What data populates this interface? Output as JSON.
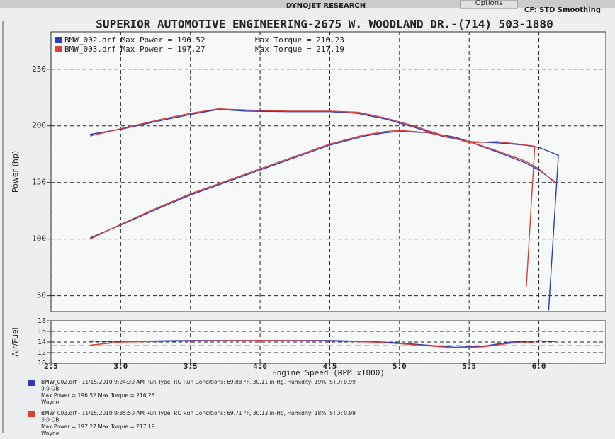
{
  "header": {
    "top_center": "DYNOJET RESEARCH",
    "tab": "Options",
    "top_right": "CF: STD Smoothing",
    "title": "SUPERIOR AUTOMOTIVE ENGINEERING-2675 W. WOODLAND DR.-(714) 503-1880"
  },
  "chart_data": [
    {
      "type": "line",
      "ylabel": "Power (hp)",
      "xlim": [
        2.5,
        6.48
      ],
      "ylim": [
        36,
        283
      ],
      "yticks": [
        50,
        100,
        150,
        200,
        250
      ],
      "grid": true,
      "series": [
        {
          "name": "BMW_002.drf Max Power = 196.52",
          "color": "#2c3bb8",
          "x": [
            2.78,
            3.0,
            3.25,
            3.5,
            3.75,
            4.0,
            4.25,
            4.5,
            4.75,
            4.9,
            5.0,
            5.2,
            5.4,
            5.5,
            5.7,
            5.9,
            6.0,
            6.14,
            6.07
          ],
          "values": [
            101,
            112.5,
            126,
            139,
            150,
            161,
            172,
            183,
            191,
            194,
            195,
            194,
            190,
            186,
            185,
            183,
            181,
            174,
            37
          ]
        },
        {
          "name": "Max Torque = 216.23",
          "color": "#2c3bb8",
          "x": [
            2.78,
            3.0,
            3.3,
            3.5,
            3.7,
            3.9,
            4.2,
            4.5,
            4.7,
            4.9,
            5.1,
            5.3,
            5.5,
            5.7,
            5.9,
            6.0,
            6.12
          ],
          "values": [
            192.5,
            197,
            205,
            210,
            214.5,
            213,
            212.5,
            212.5,
            211,
            206,
            199,
            191,
            186,
            177,
            167.5,
            161,
            150
          ]
        },
        {
          "name": "BMW_003.drf Max Power = 197.27",
          "color": "#d8403c",
          "x": [
            2.78,
            3.0,
            3.25,
            3.5,
            3.75,
            4.0,
            4.25,
            4.5,
            4.75,
            4.9,
            5.0,
            5.2,
            5.4,
            5.5,
            5.7,
            5.85,
            5.97,
            5.91
          ],
          "values": [
            100,
            113,
            127,
            140,
            151,
            162,
            173,
            184,
            192,
            195,
            196,
            194,
            189,
            185,
            186,
            184,
            182,
            58
          ]
        },
        {
          "name": "Max Torque = 217.19",
          "color": "#d8403c",
          "x": [
            2.78,
            3.0,
            3.3,
            3.5,
            3.7,
            3.9,
            4.2,
            4.5,
            4.7,
            4.9,
            5.1,
            5.3,
            5.5,
            5.7,
            5.9,
            6.0,
            6.12
          ],
          "values": [
            191,
            197.5,
            206,
            211,
            215,
            214,
            213,
            213,
            212,
            207,
            200,
            192,
            186,
            178,
            169,
            162,
            149
          ]
        }
      ]
    },
    {
      "type": "line",
      "ylabel": "Air/Fuel",
      "xlabel": "Engine Speed (RPM x1000)",
      "xlim": [
        2.5,
        6.48
      ],
      "ylim": [
        10,
        18
      ],
      "yticks": [
        10,
        12,
        14,
        16,
        18
      ],
      "xticks": [
        {
          "value": 2.5,
          "label": "2.5"
        },
        {
          "value": 3,
          "label": "3.0"
        },
        {
          "value": 3.5,
          "label": "3.5"
        },
        {
          "value": 4,
          "label": "4.0"
        },
        {
          "value": 4.5,
          "label": "4.5"
        },
        {
          "value": 5,
          "label": "5.0"
        },
        {
          "value": 5.5,
          "label": "5.5"
        },
        {
          "value": 6,
          "label": "6.0"
        }
      ],
      "grid": true,
      "series": [
        {
          "color": "#2c3bb8",
          "dash": false,
          "x": [
            2.78,
            3.0,
            3.5,
            4.0,
            4.5,
            4.8,
            5.0,
            5.2,
            5.4,
            5.6,
            5.8,
            6.0,
            6.12
          ],
          "values": [
            14.2,
            14.1,
            14.3,
            14.3,
            14.3,
            14.1,
            13.8,
            13.4,
            13.0,
            13.2,
            14.0,
            14.2,
            14.1
          ]
        },
        {
          "color": "#d8403c",
          "dash": false,
          "x": [
            2.78,
            3.0,
            3.5,
            4.0,
            4.5,
            4.8,
            5.0,
            5.2,
            5.4,
            5.6,
            5.8,
            5.97
          ],
          "values": [
            13.4,
            14.0,
            14.2,
            14.3,
            14.2,
            14.0,
            13.7,
            13.3,
            12.9,
            13.1,
            13.8,
            13.9
          ]
        },
        {
          "color": "#d8403c",
          "dash": true,
          "x": [
            2.5,
            6.48
          ],
          "values": [
            13.3,
            13.3
          ]
        }
      ]
    }
  ],
  "notes": [
    {
      "color": "#2c3bb8",
      "lines": [
        "BMW_002.drf - 11/15/2010 9:24:30 AM  Run Type: RO  Run Conditions: 69.88 °F, 30.11 in-Hg, Humidity: 19%, STD: 0.99",
        "3.0 OB",
        "Max Power = 196.52  Max Torque = 216.23",
        "Wayne"
      ]
    },
    {
      "color": "#d8403c",
      "lines": [
        "BMW_003.drf - 11/15/2010 9:35:50 AM  Run Type: RO  Run Conditions: 69.71 °F, 30.13 in-Hg, Humidity: 18%, STD: 0.99",
        "3.0 OB",
        "Max Power = 197.27  Max Torque = 217.19",
        "Wayne"
      ]
    }
  ]
}
